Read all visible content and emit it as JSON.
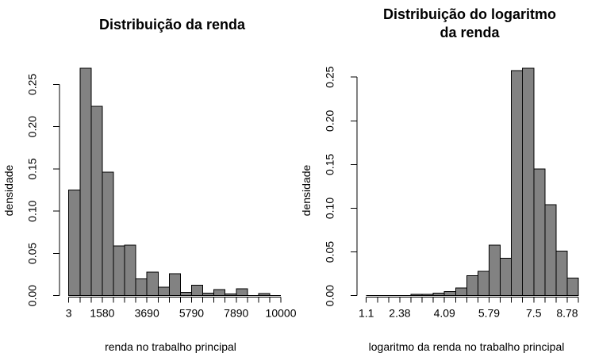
{
  "figure": {
    "background": "#ffffff",
    "text_color": "#000000",
    "bar_fill": "#828282",
    "bar_stroke": "#000000"
  },
  "chart_data": [
    {
      "type": "bar",
      "subtype": "histogram",
      "title_lines": [
        "Distribuição da renda"
      ],
      "xlabel": "renda no trabalho principal",
      "ylabel": "densidade",
      "ylim": [
        0,
        0.269
      ],
      "y_ticks": [
        "0.00",
        "0.05",
        "0.10",
        "0.15",
        "0.20",
        "0.25"
      ],
      "bin_edges": [
        3,
        529,
        1055,
        1580,
        2107,
        2633,
        3159,
        3690,
        4212,
        4738,
        5264,
        5790,
        6317,
        6843,
        7369,
        7890,
        8421,
        8948,
        9474,
        10000
      ],
      "densities": [
        0.125,
        0.269,
        0.224,
        0.146,
        0.059,
        0.06,
        0.02,
        0.028,
        0.01,
        0.026,
        0.004,
        0.0125,
        0.003,
        0.007,
        0.002,
        0.008,
        0,
        0.0025,
        0
      ],
      "x_ticks": [
        {
          "label": "3",
          "edge_index": 0
        },
        {
          "label": "1580",
          "edge_index": 3
        },
        {
          "label": "3690",
          "edge_index": 7
        },
        {
          "label": "5790",
          "edge_index": 11
        },
        {
          "label": "7890",
          "edge_index": 15
        },
        {
          "label": "10000",
          "edge_index": 19
        }
      ]
    },
    {
      "type": "bar",
      "subtype": "histogram",
      "title_lines": [
        "Distribuição do logaritmo",
        "da renda"
      ],
      "xlabel": "logaritmo da renda no trabalho principal",
      "ylabel": "densidade",
      "ylim": [
        0,
        0.26
      ],
      "y_ticks": [
        "0.00",
        "0.05",
        "0.10",
        "0.15",
        "0.20",
        "0.25"
      ],
      "bin_edges": [
        1.1,
        1.53,
        1.95,
        2.38,
        2.81,
        3.23,
        3.66,
        4.09,
        4.51,
        4.94,
        5.37,
        5.79,
        6.22,
        6.65,
        7.07,
        7.5,
        7.93,
        8.35,
        8.78,
        9.21
      ],
      "densities": [
        0,
        0,
        0,
        0,
        0.0015,
        0.0015,
        0.003,
        0.0045,
        0.009,
        0.023,
        0.028,
        0.058,
        0.043,
        0.2575,
        0.26,
        0.145,
        0.104,
        0.051,
        0.02
      ],
      "x_ticks": [
        {
          "label": "1.1",
          "edge_index": 0
        },
        {
          "label": "2.38",
          "edge_index": 3
        },
        {
          "label": "4.09",
          "edge_index": 7
        },
        {
          "label": "5.79",
          "edge_index": 11
        },
        {
          "label": "7.5",
          "edge_index": 15
        },
        {
          "label": "8.78",
          "edge_index": 18
        }
      ]
    }
  ]
}
